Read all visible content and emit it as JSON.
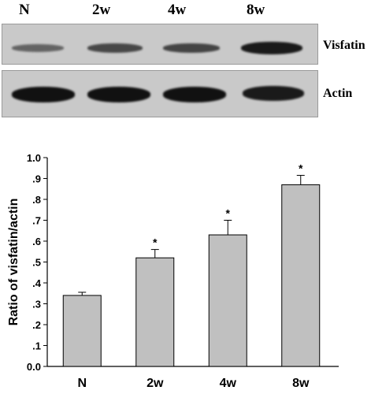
{
  "blot": {
    "lanes": [
      "N",
      "2w",
      "4w",
      "8w"
    ],
    "rows": [
      {
        "label": "Visfatin",
        "band_intensity": [
          0.55,
          0.7,
          0.72,
          0.95
        ]
      },
      {
        "label": "Actin",
        "band_intensity": [
          1.0,
          1.0,
          1.0,
          0.95
        ]
      }
    ],
    "band_color": "#111111",
    "background_color": "#c9c9c9"
  },
  "chart_data": {
    "type": "bar",
    "categories": [
      "N",
      "2w",
      "4w",
      "8w"
    ],
    "values": [
      0.34,
      0.52,
      0.63,
      0.87
    ],
    "errors": [
      0.015,
      0.04,
      0.07,
      0.045
    ],
    "significance": [
      "",
      "*",
      "*",
      "*"
    ],
    "ylabel": "Ratio of visfatin/actin",
    "xlabel": "",
    "ylim": [
      0,
      1.0
    ],
    "yticks": [
      0,
      0.1,
      0.2,
      0.3,
      0.4,
      0.5,
      0.6,
      0.7,
      0.8,
      0.9,
      1.0
    ],
    "ytick_labels": [
      "0.0",
      ".1",
      ".2",
      ".3",
      ".4",
      ".5",
      ".6",
      ".7",
      ".8",
      ".9",
      "1.0"
    ],
    "bar_color": "#c0c0c0",
    "bar_edge_color": "#000000",
    "grid": false
  }
}
